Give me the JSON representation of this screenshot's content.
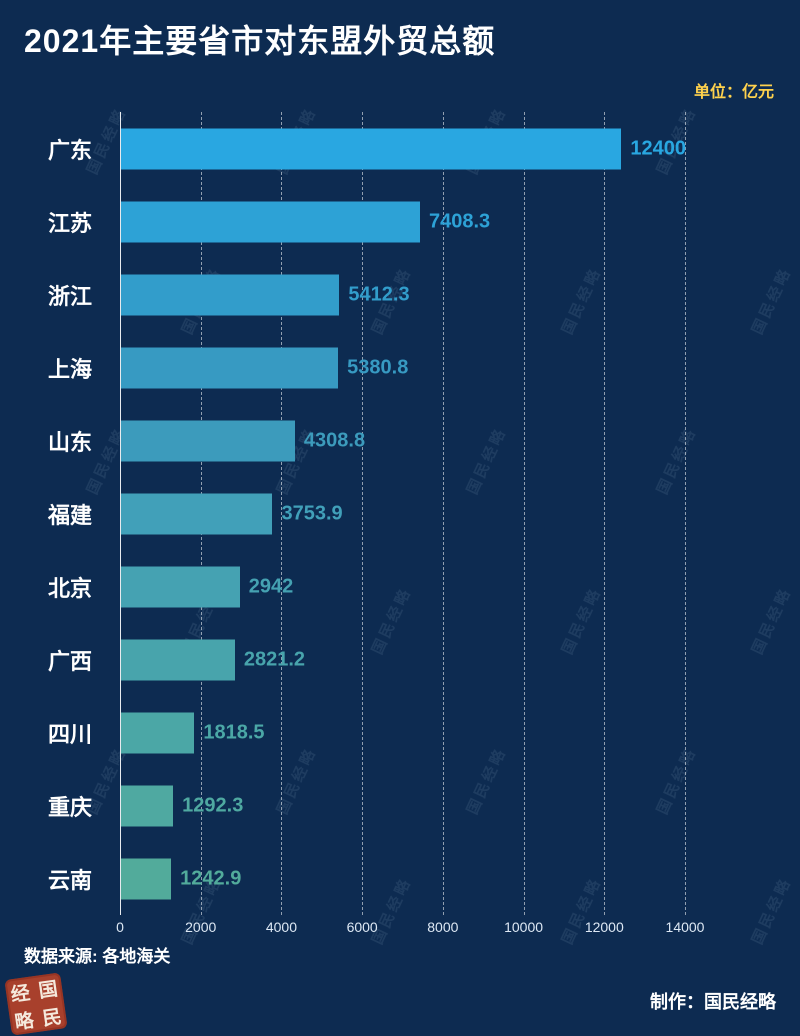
{
  "page": {
    "background": "#0d2b51"
  },
  "header": {
    "title": "2021年主要省市对东盟外贸总额",
    "unit": "单位：亿元"
  },
  "chart_data": {
    "type": "bar",
    "orientation": "horizontal",
    "title": "2021年主要省市对东盟外贸总额",
    "unit": "亿元",
    "categories": [
      "广东",
      "江苏",
      "浙江",
      "上海",
      "山东",
      "福建",
      "北京",
      "广西",
      "四川",
      "重庆",
      "云南"
    ],
    "values": [
      12400,
      7408.3,
      5412.3,
      5380.8,
      4308.8,
      3753.9,
      2942,
      2821.2,
      1818.5,
      1292.3,
      1242.9
    ],
    "labels": [
      "12400",
      "7408.3",
      "5412.3",
      "5380.8",
      "4308.8",
      "3753.9",
      "2942",
      "2821.2",
      "1818.5",
      "1292.3",
      "1242.9"
    ],
    "x_ticks": [
      "0",
      "2000",
      "4000",
      "6000",
      "8000",
      "10000",
      "12000",
      "14000"
    ],
    "xlim": [
      0,
      14000
    ],
    "grid": "vertical-dashed",
    "legend": "none",
    "bar_colors": [
      "#29a7e1",
      "#2da2d6",
      "#329dcb",
      "#379ac2",
      "#3c9bbc",
      "#41a0b9",
      "#45a2b2",
      "#48a4ac",
      "#4ba7a6",
      "#4fa9a1",
      "#52ab9b"
    ]
  },
  "footer": {
    "source": "数据来源: 各地海关",
    "credit": "制作：国民经略"
  },
  "watermark": {
    "text": "国民经略"
  },
  "seal": {
    "chars": [
      "经",
      "国",
      "略",
      "民"
    ]
  }
}
